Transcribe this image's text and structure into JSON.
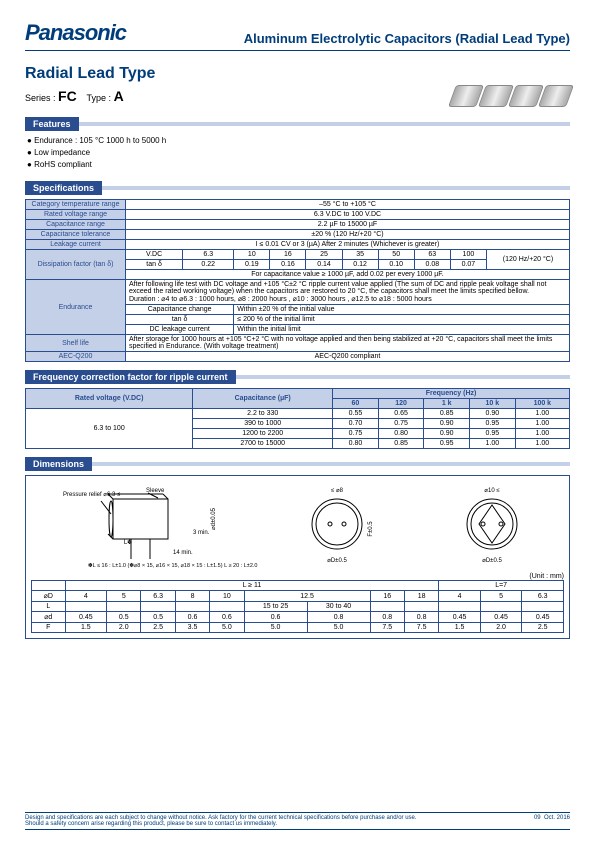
{
  "header": {
    "brand": "Panasonic",
    "title": "Aluminum Electrolytic Capacitors (Radial Lead Type)"
  },
  "title": "Radial Lead Type",
  "series": {
    "label": "Series :",
    "series": "FC",
    "type_label": "Type :",
    "type": "A"
  },
  "features": {
    "title": "Features",
    "items": [
      "Endurance : 105 °C 1000 h to 5000 h",
      "Low impedance",
      "RoHS compliant"
    ]
  },
  "specs": {
    "title": "Specifications",
    "rows": {
      "temp": {
        "label": "Category temperature range",
        "val": "–55 °C to +105 °C"
      },
      "voltage": {
        "label": "Rated voltage range",
        "val": "6.3 V.DC to 100 V.DC"
      },
      "cap": {
        "label": "Capacitance range",
        "val": "2.2 µF to 15000 µF"
      },
      "tol": {
        "label": "Capacitance tolerance",
        "val": "±20 % (120 Hz/+20 °C)"
      },
      "leak": {
        "label": "Leakage current",
        "val": "I ≤ 0.01 CV or 3 (µA) After 2 minutes (Whichever is greater)"
      },
      "diss": {
        "label": "Dissipation factor (tan δ)",
        "row1": "V.DC",
        "r1vals": [
          "6.3",
          "10",
          "16",
          "25",
          "35",
          "50",
          "63",
          "100"
        ],
        "row2": "tan δ",
        "r2vals": [
          "0.22",
          "0.19",
          "0.16",
          "0.14",
          "0.12",
          "0.10",
          "0.08",
          "0.07"
        ],
        "note": "(120 Hz/+20 °C)",
        "foot": "For capacitance value ≥ 1000 µF, add 0.02 per every 1000 µF."
      },
      "endurance": {
        "label": "Endurance",
        "text1": "After following life test with DC voltage and +105 °C±2 °C ripple current value applied (The sum of DC and ripple peak voltage shall not exceed the rated working voltage) when the capacitors are restored to 20 °C, the capacitors shall meet the limits specified bellow.",
        "text2": "Duration : ⌀4 to ⌀6.3 : 1000 hours, ⌀8 : 2000 hours , ⌀10 : 3000 hours , ⌀12.5 to ⌀18 : 5000 hours",
        "sub": [
          [
            "Capacitance change",
            "Within ±20 % of the initial value"
          ],
          [
            "tan δ",
            "≤ 200 % of the initial limit"
          ],
          [
            "DC leakage current",
            "Within the initial limit"
          ]
        ]
      },
      "shelf": {
        "label": "Shelf life",
        "val": "After storage for 1000 hours at +105 °C+2 °C with no voltage applied and then being stabilized at +20 °C, capacitors shall meet the limits specified in Endurance. (With voltage treatment)"
      },
      "aec": {
        "label": "AEC-Q200",
        "val": "AEC-Q200 compliant"
      }
    }
  },
  "freq": {
    "title": "Frequency correction factor for ripple current",
    "headers": {
      "rv": "Rated voltage (V.DC)",
      "cap": "Capacitance (µF)",
      "freq": "Frequency (Hz)",
      "cols": [
        "60",
        "120",
        "1 k",
        "10 k",
        "100 k"
      ]
    },
    "rv_val": "6.3 to 100",
    "rows": [
      {
        "cap": "2.2 to 330",
        "vals": [
          "0.55",
          "0.65",
          "0.85",
          "0.90",
          "1.00"
        ]
      },
      {
        "cap": "390 to 1000",
        "vals": [
          "0.70",
          "0.75",
          "0.90",
          "0.95",
          "1.00"
        ]
      },
      {
        "cap": "1200 to 2200",
        "vals": [
          "0.75",
          "0.80",
          "0.90",
          "0.95",
          "1.00"
        ]
      },
      {
        "cap": "2700 to 15000",
        "vals": [
          "0.80",
          "0.85",
          "0.95",
          "1.00",
          "1.00"
        ]
      }
    ]
  },
  "dims": {
    "title": "Dimensions",
    "labels": {
      "sleeve": "Sleeve",
      "pressure": "Pressure relief ⌀6.3 ≤",
      "l14": "14 min.",
      "l3": "3 min.",
      "l_note": "✽L ≤ 16 : L±1.0 (✽⌀8 × 15, ⌀16 × 15, ⌀18 × 15 : L±1.5)\\n  L ≥ 20 : L±2.0",
      "phi8": "≤ ⌀8",
      "phi10": "⌀10 ≤",
      "phiD05": "⌀D±0.5",
      "F05": "F±0.5",
      "phid005": "⌀d±0.05",
      "Lstar": "L✽"
    },
    "unit": "(Unit : mm)",
    "table": {
      "h1": "L ≥ 11",
      "h2": "L=7",
      "phiD": [
        "4",
        "5",
        "6.3",
        "8",
        "10",
        "12.5",
        "12.5",
        "16",
        "18",
        "4",
        "5",
        "6.3"
      ],
      "L": [
        "",
        "",
        "",
        "",
        "",
        "15 to 25",
        "30 to 40",
        "",
        "",
        "",
        "",
        ""
      ],
      "phid": [
        "0.45",
        "0.5",
        "0.5",
        "0.6",
        "0.6",
        "0.6",
        "0.8",
        "0.8",
        "0.8",
        "0.45",
        "0.45",
        "0.45"
      ],
      "F": [
        "1.5",
        "2.0",
        "2.5",
        "3.5",
        "5.0",
        "5.0",
        "5.0",
        "7.5",
        "7.5",
        "1.5",
        "2.0",
        "2.5"
      ]
    }
  },
  "footer": {
    "text": "Design and specifications are each subject to change without notice. Ask factory for the current technical specifications before purchase and/or use.\\nShould a safety concern arise regarding this product, please be sure to contact us immediately.",
    "page": "09",
    "date": "Oct. 2016"
  }
}
